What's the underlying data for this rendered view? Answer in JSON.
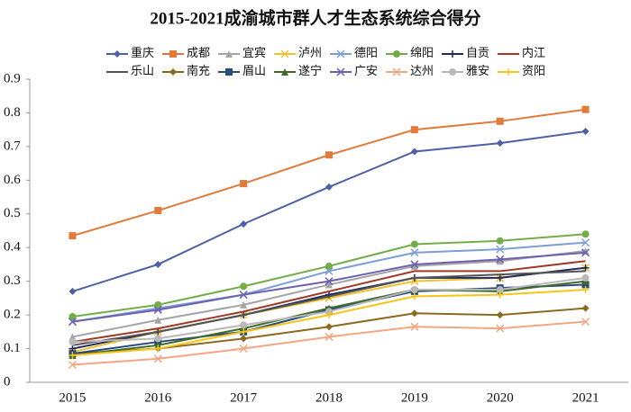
{
  "chart_data": {
    "type": "line",
    "title": "2015-2021成渝城市群人才生态系统综合得分",
    "categories": [
      "2015",
      "2016",
      "2017",
      "2018",
      "2019",
      "2020",
      "2021"
    ],
    "ylim": [
      0,
      0.9
    ],
    "yticks": [
      0,
      0.1,
      0.2,
      0.3,
      0.4,
      0.5,
      0.6,
      0.7,
      0.8,
      0.9
    ],
    "grid": false,
    "legend": "top",
    "series": [
      {
        "name": "重庆",
        "color": "#4f5fa6",
        "marker": "diamond",
        "values": [
          0.27,
          0.35,
          0.47,
          0.58,
          0.685,
          0.71,
          0.745
        ]
      },
      {
        "name": "成都",
        "color": "#e07b39",
        "marker": "square",
        "values": [
          0.435,
          0.51,
          0.59,
          0.675,
          0.75,
          0.775,
          0.81
        ]
      },
      {
        "name": "宜宾",
        "color": "#a5a5a5",
        "marker": "triangle",
        "values": [
          0.135,
          0.185,
          0.23,
          0.29,
          0.345,
          0.36,
          0.39
        ]
      },
      {
        "name": "泸州",
        "color": "#f2c12e",
        "marker": "x",
        "values": [
          0.09,
          0.15,
          0.2,
          0.25,
          0.3,
          0.31,
          0.34
        ]
      },
      {
        "name": "德阳",
        "color": "#7c9fd6",
        "marker": "x",
        "values": [
          0.18,
          0.22,
          0.26,
          0.33,
          0.385,
          0.395,
          0.415
        ]
      },
      {
        "name": "绵阳",
        "color": "#72ad47",
        "marker": "circle",
        "values": [
          0.195,
          0.23,
          0.285,
          0.345,
          0.41,
          0.42,
          0.44
        ]
      },
      {
        "name": "自贡",
        "color": "#1f2c5c",
        "marker": "plus",
        "values": [
          0.1,
          0.15,
          0.2,
          0.26,
          0.31,
          0.31,
          0.34
        ]
      },
      {
        "name": "内江",
        "color": "#9e3a26",
        "marker": "none",
        "values": [
          0.12,
          0.16,
          0.21,
          0.27,
          0.33,
          0.33,
          0.36
        ]
      },
      {
        "name": "乐山",
        "color": "#555555",
        "marker": "none",
        "values": [
          0.11,
          0.15,
          0.2,
          0.255,
          0.31,
          0.32,
          0.33
        ]
      },
      {
        "name": "南充",
        "color": "#8c6a1f",
        "marker": "diamond",
        "values": [
          0.085,
          0.1,
          0.13,
          0.165,
          0.205,
          0.2,
          0.22
        ]
      },
      {
        "name": "眉山",
        "color": "#2a4a7a",
        "marker": "square",
        "values": [
          0.085,
          0.12,
          0.15,
          0.215,
          0.27,
          0.28,
          0.29
        ]
      },
      {
        "name": "遂宁",
        "color": "#3f6a2a",
        "marker": "triangle",
        "values": [
          0.08,
          0.11,
          0.16,
          0.22,
          0.275,
          0.27,
          0.3
        ]
      },
      {
        "name": "广安",
        "color": "#6b62b0",
        "marker": "x",
        "values": [
          0.18,
          0.215,
          0.26,
          0.3,
          0.35,
          0.365,
          0.385
        ]
      },
      {
        "name": "达州",
        "color": "#f4a582",
        "marker": "x",
        "values": [
          0.052,
          0.07,
          0.1,
          0.135,
          0.165,
          0.16,
          0.18
        ]
      },
      {
        "name": "雅安",
        "color": "#b8b8b8",
        "marker": "circle",
        "values": [
          0.12,
          0.13,
          0.17,
          0.21,
          0.275,
          0.275,
          0.31
        ]
      },
      {
        "name": "资阳",
        "color": "#f5c518",
        "marker": "plus",
        "values": [
          0.08,
          0.1,
          0.15,
          0.2,
          0.255,
          0.26,
          0.275
        ]
      }
    ]
  }
}
